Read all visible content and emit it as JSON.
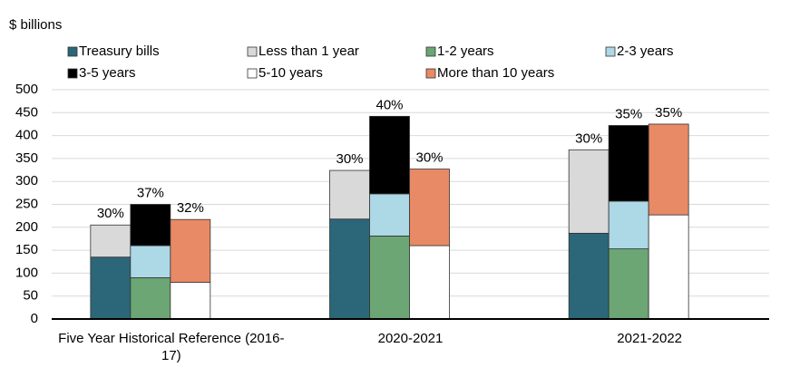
{
  "chart_data": {
    "type": "grouped-stacked-bar",
    "ylabel": "$ billions",
    "categories": [
      "Five Year Historical Reference (2016-17)",
      "2020-2021",
      "2021-2022"
    ],
    "series": [
      {
        "name": "Treasury bills",
        "color": "#2b6779",
        "stack": 0,
        "values": [
          135,
          218,
          187
        ]
      },
      {
        "name": "Less than 1 year",
        "color": "#d9d9d9",
        "stack": 0,
        "values": [
          70,
          106,
          182
        ]
      },
      {
        "name": "1-2 years",
        "color": "#6ba674",
        "stack": 1,
        "values": [
          90,
          181,
          153
        ]
      },
      {
        "name": "2-3 years",
        "color": "#add8e6",
        "stack": 1,
        "values": [
          70,
          92,
          104
        ]
      },
      {
        "name": "3-5 years",
        "color": "#000000",
        "stack": 1,
        "values": [
          90,
          169,
          165
        ]
      },
      {
        "name": "5-10 years",
        "color": "#ffffff",
        "stack": 2,
        "values": [
          80,
          160,
          227
        ]
      },
      {
        "name": "More than 10 years",
        "color": "#e88a65",
        "stack": 2,
        "values": [
          137,
          167,
          198
        ]
      }
    ],
    "stack_labels": [
      [
        "30%",
        "37%",
        "32%"
      ],
      [
        "30%",
        "40%",
        "30%"
      ],
      [
        "30%",
        "35%",
        "35%"
      ]
    ],
    "ylim": [
      0,
      500
    ],
    "yticks": [
      0,
      50,
      100,
      150,
      200,
      250,
      300,
      350,
      400,
      450,
      500
    ],
    "grid": true
  }
}
